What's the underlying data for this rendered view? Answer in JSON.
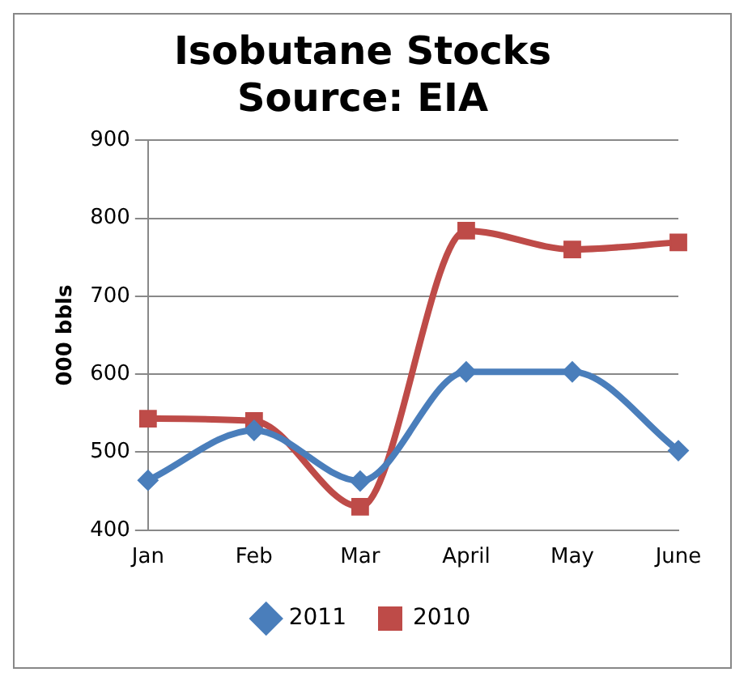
{
  "chart_data": {
    "type": "line",
    "title": [
      "Isobutane Stocks",
      "Source: EIA"
    ],
    "ylabel": "000 bbls",
    "categories": [
      "Jan",
      "Feb",
      "Mar",
      "April",
      "May",
      "June"
    ],
    "series": [
      {
        "name": "2011",
        "color": "#4a7ebb",
        "values": [
          464,
          528,
          463,
          603,
          603,
          502
        ],
        "marker": "diamond"
      },
      {
        "name": "2010",
        "color": "#be4b48",
        "values": [
          543,
          540,
          430,
          784,
          760,
          769
        ],
        "marker": "square"
      }
    ],
    "ylim": [
      400,
      900
    ],
    "yticks": [
      400,
      500,
      600,
      700,
      800,
      900
    ],
    "grid": "y",
    "legend": "bottom",
    "line_style": "solid"
  }
}
